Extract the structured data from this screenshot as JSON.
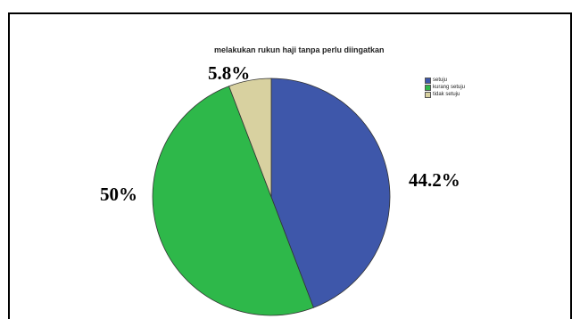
{
  "chart_data": {
    "type": "pie",
    "title": "melakukan rukun haji tanpa perlu diingatkan",
    "slices": [
      {
        "name": "setuju",
        "value": 44.2,
        "label": "44.2%",
        "color": "#3e57aa"
      },
      {
        "name": "kurang setuju",
        "value": 50,
        "label": "50%",
        "color": "#2eb84a"
      },
      {
        "name": "tidak setuju",
        "value": 5.8,
        "label": "5.8%",
        "color": "#d8d1a0"
      }
    ],
    "legend": {
      "position": "top-right",
      "entries": [
        "setuju",
        "kurang setuju",
        "tidak setuju"
      ]
    }
  }
}
